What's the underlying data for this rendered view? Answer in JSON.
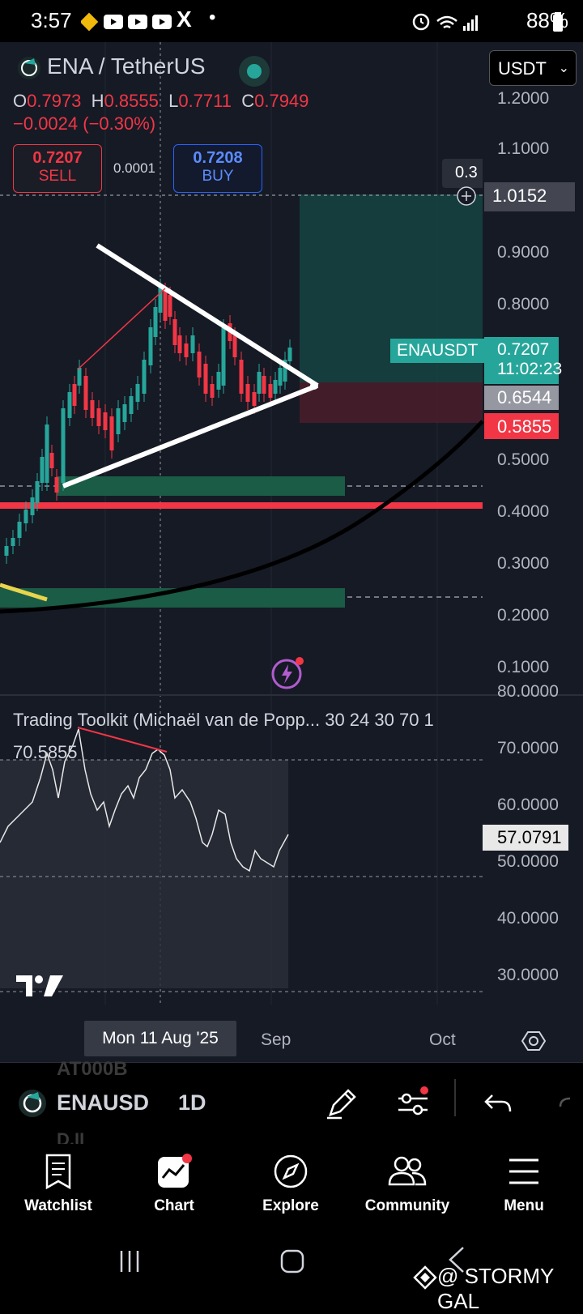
{
  "status_bar": {
    "time": "3:57",
    "battery": "88%",
    "x_glyph": "X",
    "dot": "•"
  },
  "header": {
    "symbol": "ENA / TetherUS",
    "ohlc": {
      "o_label": "O",
      "o": "0.7973",
      "h_label": "H",
      "h": "0.8555",
      "l_label": "L",
      "l": "0.7711",
      "c_label": "C",
      "c": "0.7949"
    },
    "change": "−0.0024 (−0.30%)",
    "sell": {
      "price": "0.7207",
      "label": "SELL"
    },
    "spread": "0.0001",
    "buy": {
      "price": "0.7208",
      "label": "BUY"
    },
    "currency_select": "USDT"
  },
  "price_axis": {
    "labels": [
      "1.2000",
      "1.1000",
      "0.9000",
      "0.8000",
      "0.5000",
      "0.4000",
      "0.3000",
      "0.2000",
      "0.1000"
    ]
  },
  "price_tags": {
    "crosshair": "1.0152",
    "crosshair_partial": "0.3",
    "symbol_tag": "ENAUSDT",
    "last_price": "0.7207",
    "countdown": "11:02:23",
    "gray": "0.6544",
    "red": "0.5855"
  },
  "indicator": {
    "title": "Trading Toolkit (Michaël van de Popp... 30 24 30 70 1",
    "value": "70.5855",
    "axis_labels": [
      "80.0000",
      "70.0000",
      "60.0000",
      "50.0000",
      "40.0000",
      "30.0000"
    ],
    "current_tag": "57.0791"
  },
  "time_axis": {
    "crosshair_date": "Mon 11 Aug '25",
    "labels": [
      "Sep",
      "Oct"
    ]
  },
  "bottom_bar": {
    "symbol": "ENAUSD",
    "interval": "1D",
    "ghost_top": "AT000B",
    "ghost_bottom": "D.II"
  },
  "nav": {
    "items": [
      "Watchlist",
      "Chart",
      "Explore",
      "Community",
      "Menu"
    ]
  },
  "watermark": "@ STORMY GAL",
  "colors": {
    "bg": "#161a25",
    "up": "#26a69a",
    "down": "#f23645",
    "accent": "#2962ff"
  }
}
